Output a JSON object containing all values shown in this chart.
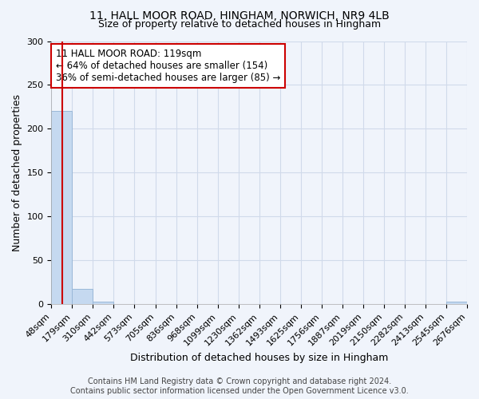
{
  "title_line1": "11, HALL MOOR ROAD, HINGHAM, NORWICH, NR9 4LB",
  "title_line2": "Size of property relative to detached houses in Hingham",
  "xlabel": "Distribution of detached houses by size in Hingham",
  "ylabel": "Number of detached properties",
  "bin_edges": [
    48,
    179,
    310,
    442,
    573,
    705,
    836,
    968,
    1099,
    1230,
    1362,
    1493,
    1625,
    1756,
    1887,
    2019,
    2150,
    2282,
    2413,
    2545,
    2676
  ],
  "bar_heights": [
    220,
    18,
    3,
    0,
    0,
    0,
    0,
    0,
    0,
    0,
    0,
    0,
    0,
    0,
    0,
    0,
    0,
    0,
    0,
    3
  ],
  "bar_color": "#c5d9f0",
  "bar_edgecolor": "#9ab8d8",
  "vline_x": 119,
  "vline_color": "#cc0000",
  "annotation_text": "11 HALL MOOR ROAD: 119sqm\n← 64% of detached houses are smaller (154)\n36% of semi-detached houses are larger (85) →",
  "annotation_box_color": "#ffffff",
  "annotation_box_edgecolor": "#cc0000",
  "ylim": [
    0,
    300
  ],
  "yticks": [
    0,
    50,
    100,
    150,
    200,
    250,
    300
  ],
  "footer_line1": "Contains HM Land Registry data © Crown copyright and database right 2024.",
  "footer_line2": "Contains public sector information licensed under the Open Government Licence v3.0.",
  "background_color": "#f0f4fb",
  "grid_color": "#d0daea",
  "title_fontsize": 10,
  "subtitle_fontsize": 9,
  "axis_label_fontsize": 9,
  "tick_fontsize": 8,
  "annotation_fontsize": 8.5,
  "footer_fontsize": 7
}
